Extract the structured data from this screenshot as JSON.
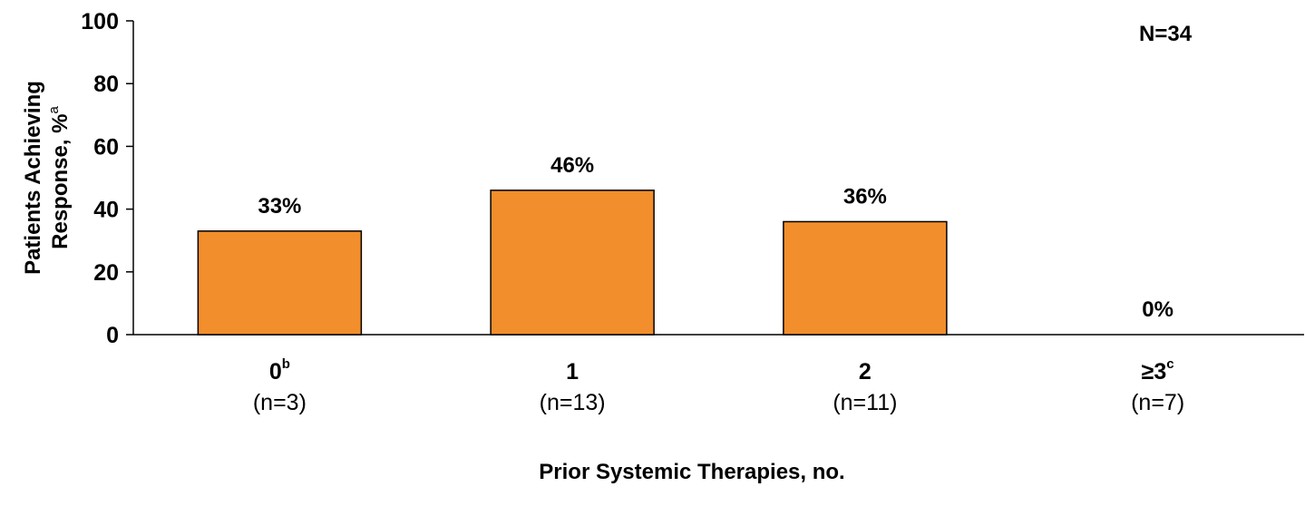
{
  "chart_data": {
    "type": "bar",
    "total_label": "N=34",
    "ylabel_line1": "Patients Achieving",
    "ylabel_line2": "Response, %",
    "ylabel_sup": "a",
    "xlabel": "Prior Systemic Therapies, no.",
    "ylim": [
      0,
      100
    ],
    "yticks": [
      0,
      20,
      40,
      60,
      80,
      100
    ],
    "grid": false,
    "categories": [
      {
        "label": "0",
        "sup": "b",
        "n_label": "(n=3)",
        "value": 33,
        "value_label": "33%"
      },
      {
        "label": "1",
        "sup": "",
        "n_label": "(n=13)",
        "value": 46,
        "value_label": "46%"
      },
      {
        "label": "2",
        "sup": "",
        "n_label": "(n=11)",
        "value": 36,
        "value_label": "36%"
      },
      {
        "label": "≥3",
        "sup": "c",
        "n_label": "(n=7)",
        "value": 0,
        "value_label": "0%"
      }
    ],
    "bar_color": "#f28e2b",
    "bar_edge_color": "#000000"
  }
}
